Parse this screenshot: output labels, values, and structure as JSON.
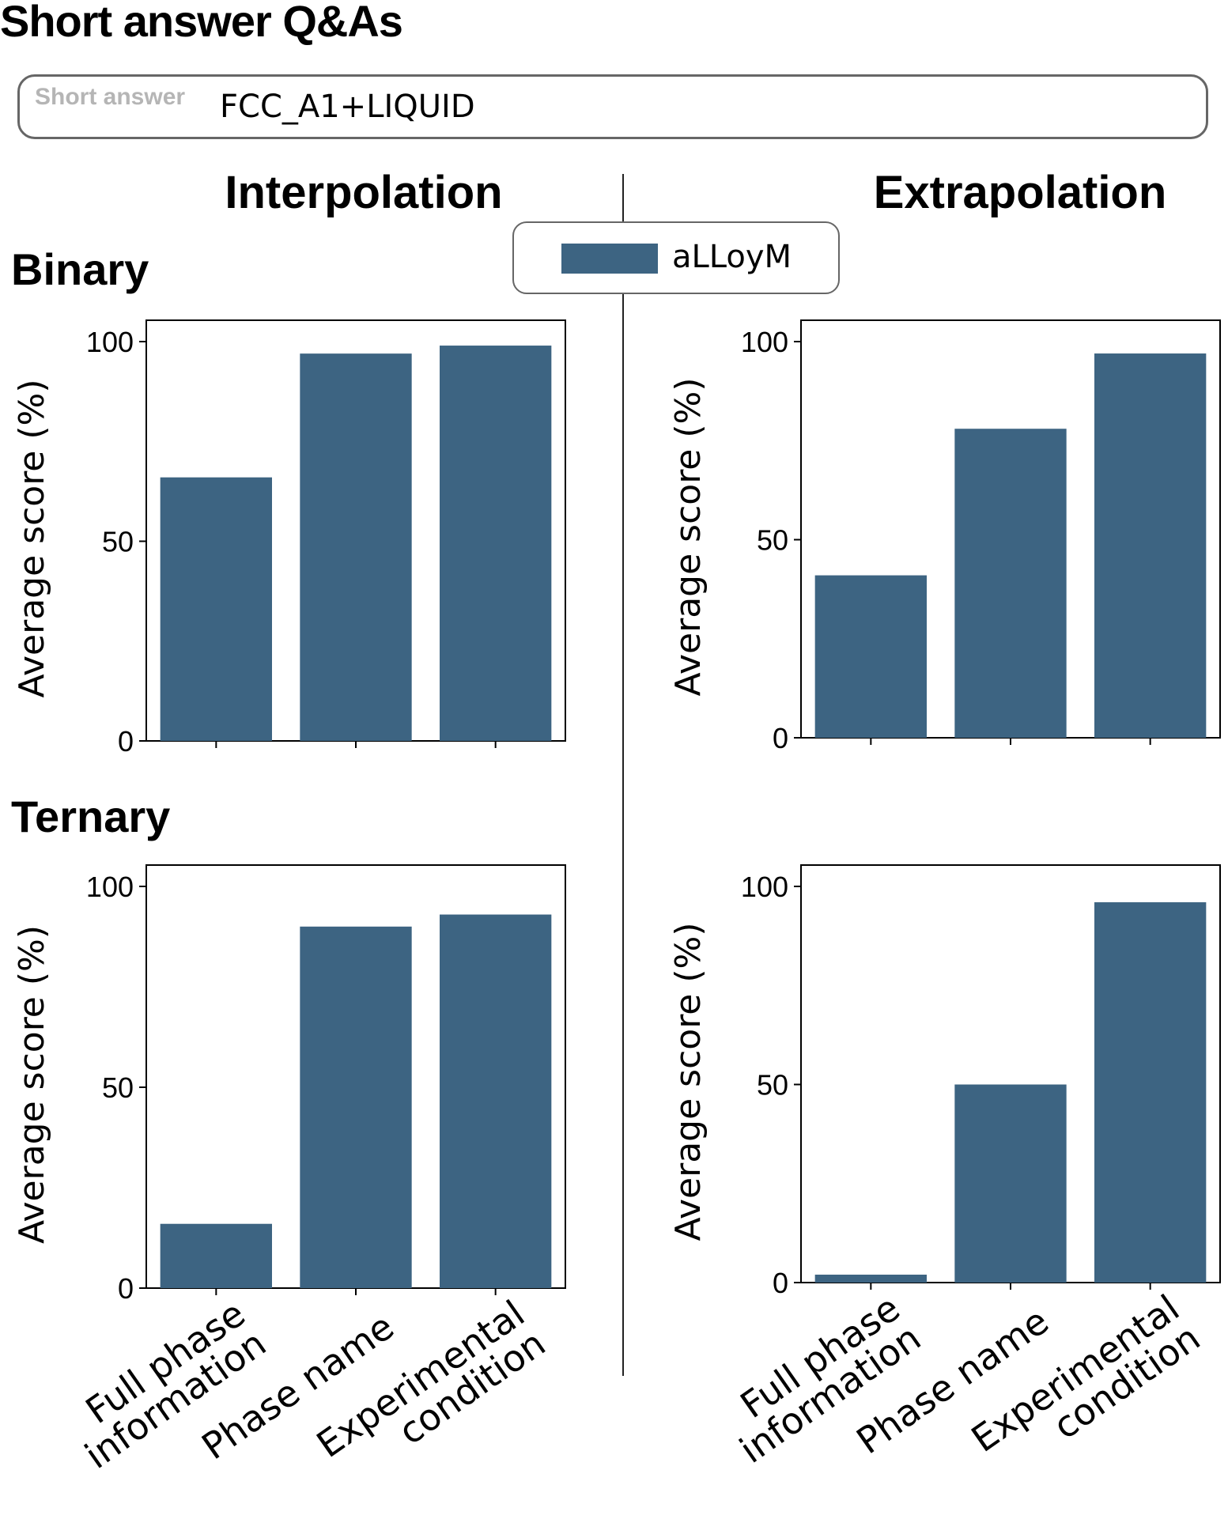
{
  "page": {
    "title": "Short answer Q&As",
    "answer_label": "Short answer",
    "answer_value": "FCC_A1+LIQUID",
    "column_headers": [
      "Interpolation",
      "Extrapolation"
    ],
    "row_headers": [
      "Binary",
      "Ternary"
    ]
  },
  "legend": {
    "label": "aLLoyM"
  },
  "colors": {
    "bar": "#3d6482"
  },
  "chart_data": [
    {
      "type": "bar",
      "panel": "Binary / Interpolation",
      "categories": [
        "Full phase\ninformation",
        "Phase name",
        "Experimental\ncondition"
      ],
      "series": [
        {
          "name": "aLLoyM",
          "values": [
            66,
            97,
            99
          ]
        }
      ],
      "xlabel": "",
      "ylabel": "Average score (%)",
      "ylim": [
        0,
        100
      ],
      "yticks": [
        0,
        50,
        100
      ],
      "grid": false,
      "legend": "top-center"
    },
    {
      "type": "bar",
      "panel": "Binary / Extrapolation",
      "categories": [
        "Full phase\ninformation",
        "Phase name",
        "Experimental\ncondition"
      ],
      "series": [
        {
          "name": "aLLoyM",
          "values": [
            41,
            78,
            97
          ]
        }
      ],
      "xlabel": "",
      "ylabel": "Average score (%)",
      "ylim": [
        0,
        100
      ],
      "yticks": [
        0,
        50,
        100
      ],
      "grid": false
    },
    {
      "type": "bar",
      "panel": "Ternary / Interpolation",
      "categories": [
        "Full phase\ninformation",
        "Phase name",
        "Experimental\ncondition"
      ],
      "series": [
        {
          "name": "aLLoyM",
          "values": [
            16,
            90,
            93
          ]
        }
      ],
      "xlabel": "",
      "ylabel": "Average score (%)",
      "ylim": [
        0,
        100
      ],
      "yticks": [
        0,
        50,
        100
      ],
      "grid": false
    },
    {
      "type": "bar",
      "panel": "Ternary / Extrapolation",
      "categories": [
        "Full phase\ninformation",
        "Phase name",
        "Experimental\ncondition"
      ],
      "series": [
        {
          "name": "aLLoyM",
          "values": [
            2,
            50,
            96
          ]
        }
      ],
      "xlabel": "",
      "ylabel": "Average score (%)",
      "ylim": [
        0,
        100
      ],
      "yticks": [
        0,
        50,
        100
      ],
      "grid": false
    }
  ]
}
